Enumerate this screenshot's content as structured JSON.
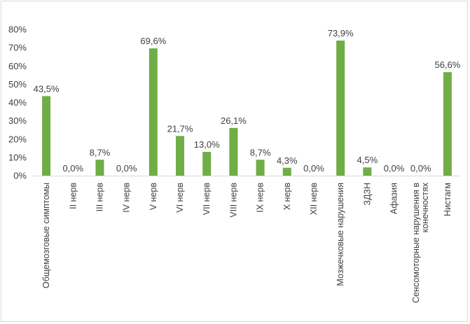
{
  "chart_data": {
    "type": "bar",
    "categories": [
      "Общемозговые симптомы",
      "II нерв",
      "III нерв",
      "IV нерв",
      "V нерв",
      "VI нерв",
      "VII нерв",
      "VIII нерв",
      "IX нерв",
      "X нерв",
      "XII нерв",
      "Мозжечковые нарушения",
      "ЗДЗН",
      "Афазия",
      "Сенсомоторные нарушения в конечностях",
      "Нистагм"
    ],
    "category_lines": [
      [
        "Общемозговые симптомы"
      ],
      [
        "II нерв"
      ],
      [
        "III нерв"
      ],
      [
        "IV нерв"
      ],
      [
        "V нерв"
      ],
      [
        "VI нерв"
      ],
      [
        "VII нерв"
      ],
      [
        "VIII нерв"
      ],
      [
        "IX нерв"
      ],
      [
        "X нерв"
      ],
      [
        "XII нерв"
      ],
      [
        "Мозжечковые нарушения"
      ],
      [
        "ЗДЗН"
      ],
      [
        "Афазия"
      ],
      [
        "Сенсомоторные нарушения в",
        "конечностях"
      ],
      [
        "Нистагм"
      ]
    ],
    "values": [
      43.5,
      0,
      8.7,
      0,
      69.6,
      21.7,
      13.0,
      26.1,
      8.7,
      4.3,
      0,
      73.9,
      4.5,
      0,
      0,
      56.6
    ],
    "data_labels": [
      "43,5%",
      "0,0%",
      "8,7%",
      "0,0%",
      "69,6%",
      "21,7%",
      "13,0%",
      "26,1%",
      "8,7%",
      "4,3%",
      "0,0%",
      "73,9%",
      "4,5%",
      "0,0%",
      "0,0%",
      "56,6%"
    ],
    "y_ticks": [
      "0%",
      "10%",
      "20%",
      "30%",
      "40%",
      "50%",
      "60%",
      "70%",
      "80%"
    ],
    "ylim": [
      0,
      80
    ],
    "grid": false,
    "legend": "none",
    "bar_color": "#70ad47",
    "axis_color": "#d9d9d9",
    "text_color": "#404040"
  }
}
